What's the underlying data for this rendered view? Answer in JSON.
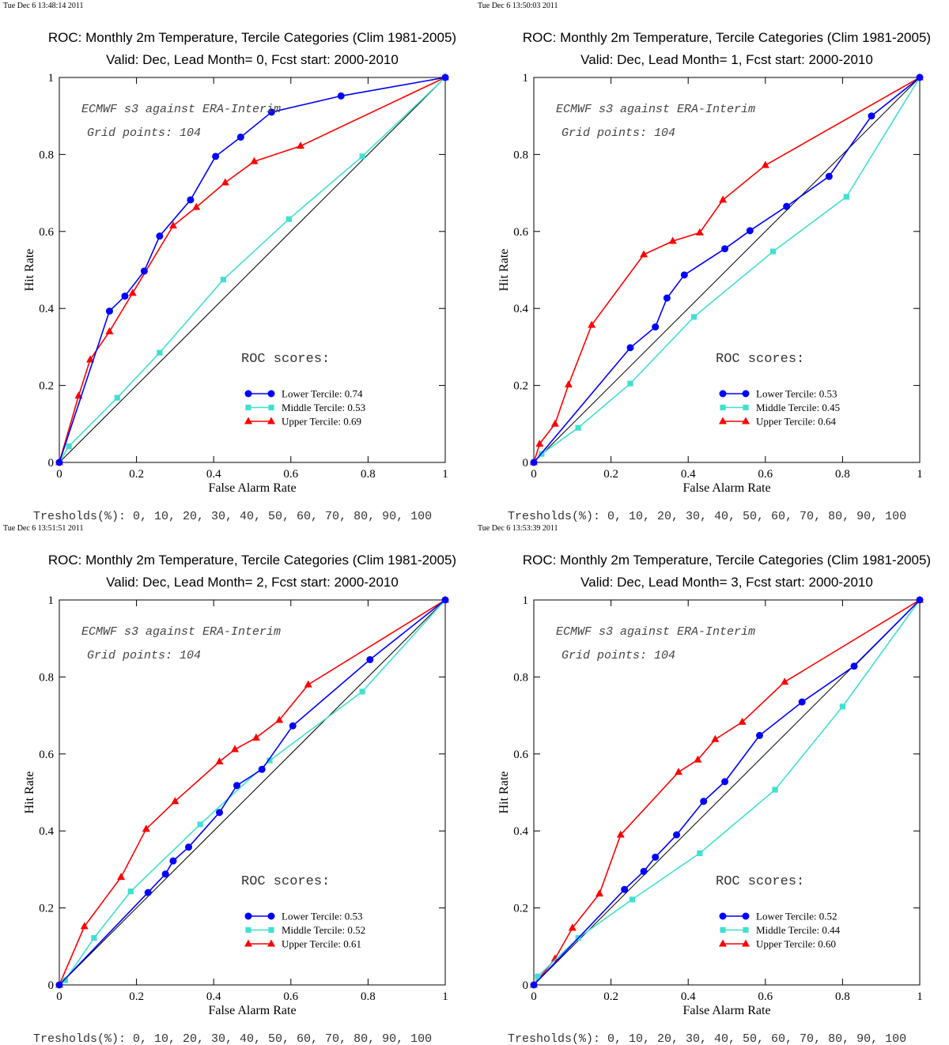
{
  "chart_data": [
    {
      "type": "line",
      "timestamp": "Tue Dec  6 13:48:14 2011",
      "title": "ROC: Monthly 2m Temperature, Tercile Categories (Clim 1981-2005)",
      "subtitle": "Valid: Dec, Lead Month= 0, Fcst start: 2000-2010",
      "xlabel": "False Alarm Rate",
      "ylabel": "Hit Rate",
      "xlim": [
        0,
        1
      ],
      "ylim": [
        0,
        1
      ],
      "xticks": [
        "0",
        "0.2",
        "0.4",
        "0.6",
        "0.8",
        "1"
      ],
      "yticks": [
        "0",
        "0.2",
        "0.4",
        "0.6",
        "0.8",
        "1"
      ],
      "annotation_1": "ECMWF s3 against ERA-Interim",
      "annotation_2": "Grid points:  104",
      "scores_heading": "ROC scores:",
      "thresholds": "Tresholds(%): 0, 10, 20, 30, 40, 50, 60, 70, 80, 90, 100",
      "series": [
        {
          "name": "Lower Tercile: 0.74",
          "color": "#0000ff",
          "marker": "circle",
          "points": [
            [
              0,
              0
            ],
            [
              0.13,
              0.393
            ],
            [
              0.17,
              0.432
            ],
            [
              0.22,
              0.497
            ],
            [
              0.26,
              0.588
            ],
            [
              0.34,
              0.682
            ],
            [
              0.405,
              0.795
            ],
            [
              0.47,
              0.845
            ],
            [
              0.55,
              0.91
            ],
            [
              0.73,
              0.952
            ],
            [
              1,
              1
            ]
          ]
        },
        {
          "name": "Middle Tercile: 0.53",
          "color": "#40e0d0",
          "marker": "square",
          "points": [
            [
              0,
              0
            ],
            [
              0.025,
              0.042
            ],
            [
              0.15,
              0.168
            ],
            [
              0.26,
              0.285
            ],
            [
              0.425,
              0.475
            ],
            [
              0.595,
              0.632
            ],
            [
              0.785,
              0.795
            ],
            [
              1,
              1
            ]
          ]
        },
        {
          "name": "Upper Tercile: 0.69",
          "color": "#ff0000",
          "marker": "triangle",
          "points": [
            [
              0,
              0
            ],
            [
              0.05,
              0.173
            ],
            [
              0.08,
              0.267
            ],
            [
              0.13,
              0.34
            ],
            [
              0.19,
              0.44
            ],
            [
              0.295,
              0.615
            ],
            [
              0.355,
              0.663
            ],
            [
              0.43,
              0.727
            ],
            [
              0.505,
              0.782
            ],
            [
              0.625,
              0.822
            ],
            [
              1,
              1
            ]
          ]
        }
      ]
    },
    {
      "type": "line",
      "timestamp": "Tue Dec  6 13:50:03 2011",
      "title": "ROC: Monthly 2m Temperature, Tercile Categories (Clim 1981-2005)",
      "subtitle": "Valid: Dec, Lead Month= 1, Fcst start: 2000-2010",
      "xlabel": "False Alarm Rate",
      "ylabel": "Hit Rate",
      "xlim": [
        0,
        1
      ],
      "ylim": [
        0,
        1
      ],
      "xticks": [
        "0",
        "0.2",
        "0.4",
        "0.6",
        "0.8",
        "1"
      ],
      "yticks": [
        "0",
        "0.2",
        "0.4",
        "0.6",
        "0.8",
        "1"
      ],
      "annotation_1": "ECMWF s3 against ERA-Interim",
      "annotation_2": "Grid points:  104",
      "scores_heading": "ROC scores:",
      "thresholds": "Tresholds(%): 0, 10, 20, 30, 40, 50, 60, 70, 80, 90, 100",
      "series": [
        {
          "name": "Lower Tercile: 0.53",
          "color": "#0000ff",
          "marker": "circle",
          "points": [
            [
              0,
              0
            ],
            [
              0.25,
              0.298
            ],
            [
              0.315,
              0.352
            ],
            [
              0.345,
              0.427
            ],
            [
              0.39,
              0.487
            ],
            [
              0.495,
              0.555
            ],
            [
              0.56,
              0.602
            ],
            [
              0.655,
              0.665
            ],
            [
              0.765,
              0.743
            ],
            [
              0.875,
              0.9
            ],
            [
              1,
              1
            ]
          ]
        },
        {
          "name": "Middle Tercile: 0.45",
          "color": "#40e0d0",
          "marker": "square",
          "points": [
            [
              0,
              0
            ],
            [
              0.02,
              0.022
            ],
            [
              0.115,
              0.09
            ],
            [
              0.25,
              0.205
            ],
            [
              0.415,
              0.378
            ],
            [
              0.62,
              0.548
            ],
            [
              0.81,
              0.69
            ],
            [
              1,
              1
            ]
          ]
        },
        {
          "name": "Upper Tercile: 0.64",
          "color": "#ff0000",
          "marker": "triangle",
          "points": [
            [
              0,
              0
            ],
            [
              0.015,
              0.048
            ],
            [
              0.055,
              0.1
            ],
            [
              0.09,
              0.202
            ],
            [
              0.15,
              0.357
            ],
            [
              0.285,
              0.54
            ],
            [
              0.36,
              0.575
            ],
            [
              0.43,
              0.597
            ],
            [
              0.49,
              0.682
            ],
            [
              0.6,
              0.772
            ],
            [
              1,
              1
            ]
          ]
        }
      ]
    },
    {
      "type": "line",
      "timestamp": "Tue Dec  6 13:51:51 2011",
      "title": "ROC: Monthly 2m Temperature, Tercile Categories (Clim 1981-2005)",
      "subtitle": "Valid: Dec, Lead Month= 2, Fcst start: 2000-2010",
      "xlabel": "False Alarm Rate",
      "ylabel": "Hit Rate",
      "xlim": [
        0,
        1
      ],
      "ylim": [
        0,
        1
      ],
      "xticks": [
        "0",
        "0.2",
        "0.4",
        "0.6",
        "0.8",
        "1"
      ],
      "yticks": [
        "0",
        "0.2",
        "0.4",
        "0.6",
        "0.8",
        "1"
      ],
      "annotation_1": "ECMWF s3 against ERA-Interim",
      "annotation_2": "Grid points:  104",
      "scores_heading": "ROC scores:",
      "thresholds": "Tresholds(%): 0, 10, 20, 30, 40, 50, 60, 70, 80, 90, 100",
      "series": [
        {
          "name": "Lower Tercile: 0.53",
          "color": "#0000ff",
          "marker": "circle",
          "points": [
            [
              0,
              0
            ],
            [
              0.23,
              0.24
            ],
            [
              0.275,
              0.288
            ],
            [
              0.295,
              0.322
            ],
            [
              0.335,
              0.358
            ],
            [
              0.415,
              0.448
            ],
            [
              0.46,
              0.518
            ],
            [
              0.525,
              0.56
            ],
            [
              0.605,
              0.673
            ],
            [
              0.805,
              0.845
            ],
            [
              1,
              1
            ]
          ]
        },
        {
          "name": "Middle Tercile: 0.52",
          "color": "#40e0d0",
          "marker": "square",
          "points": [
            [
              0,
              0
            ],
            [
              0.015,
              0.012
            ],
            [
              0.09,
              0.122
            ],
            [
              0.185,
              0.243
            ],
            [
              0.365,
              0.417
            ],
            [
              0.545,
              0.583
            ],
            [
              0.785,
              0.762
            ],
            [
              1,
              1
            ]
          ]
        },
        {
          "name": "Upper Tercile: 0.61",
          "color": "#ff0000",
          "marker": "triangle",
          "points": [
            [
              0,
              0
            ],
            [
              0.065,
              0.152
            ],
            [
              0.16,
              0.28
            ],
            [
              0.225,
              0.405
            ],
            [
              0.3,
              0.477
            ],
            [
              0.415,
              0.58
            ],
            [
              0.455,
              0.612
            ],
            [
              0.51,
              0.642
            ],
            [
              0.57,
              0.688
            ],
            [
              0.645,
              0.78
            ],
            [
              1,
              1
            ]
          ]
        }
      ]
    },
    {
      "type": "line",
      "timestamp": "Tue Dec  6 13:53:39 2011",
      "title": "ROC: Monthly 2m Temperature, Tercile Categories (Clim 1981-2005)",
      "subtitle": "Valid: Dec, Lead Month= 3, Fcst start: 2000-2010",
      "xlabel": "False Alarm Rate",
      "ylabel": "Hit Rate",
      "xlim": [
        0,
        1
      ],
      "ylim": [
        0,
        1
      ],
      "xticks": [
        "0",
        "0.2",
        "0.4",
        "0.6",
        "0.8",
        "1"
      ],
      "yticks": [
        "0",
        "0.2",
        "0.4",
        "0.6",
        "0.8",
        "1"
      ],
      "annotation_1": "ECMWF s3 against ERA-Interim",
      "annotation_2": "Grid points:  104",
      "scores_heading": "ROC scores:",
      "thresholds": "Tresholds(%): 0, 10, 20, 30, 40, 50, 60, 70, 80, 90, 100",
      "series": [
        {
          "name": "Lower Tercile: 0.52",
          "color": "#0000ff",
          "marker": "circle",
          "points": [
            [
              0,
              0
            ],
            [
              0.235,
              0.248
            ],
            [
              0.285,
              0.295
            ],
            [
              0.315,
              0.332
            ],
            [
              0.37,
              0.39
            ],
            [
              0.44,
              0.477
            ],
            [
              0.495,
              0.528
            ],
            [
              0.585,
              0.648
            ],
            [
              0.695,
              0.735
            ],
            [
              0.83,
              0.828
            ],
            [
              1,
              1
            ]
          ]
        },
        {
          "name": "Middle Tercile: 0.44",
          "color": "#40e0d0",
          "marker": "square",
          "points": [
            [
              0,
              0
            ],
            [
              0.01,
              0.022
            ],
            [
              0.115,
              0.122
            ],
            [
              0.255,
              0.222
            ],
            [
              0.43,
              0.342
            ],
            [
              0.625,
              0.507
            ],
            [
              0.8,
              0.723
            ],
            [
              1,
              1
            ]
          ]
        },
        {
          "name": "Upper Tercile: 0.60",
          "color": "#ff0000",
          "marker": "triangle",
          "points": [
            [
              0,
              0
            ],
            [
              0.055,
              0.068
            ],
            [
              0.1,
              0.148
            ],
            [
              0.17,
              0.237
            ],
            [
              0.225,
              0.39
            ],
            [
              0.375,
              0.553
            ],
            [
              0.425,
              0.585
            ],
            [
              0.47,
              0.638
            ],
            [
              0.54,
              0.683
            ],
            [
              0.65,
              0.787
            ],
            [
              1,
              1
            ]
          ]
        }
      ]
    }
  ]
}
